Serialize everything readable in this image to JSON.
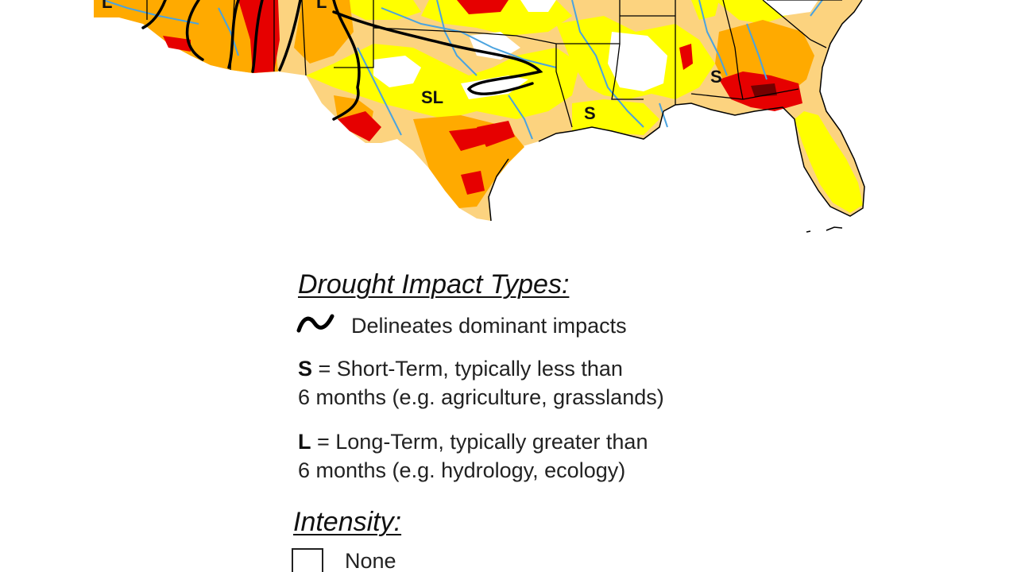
{
  "map": {
    "region_labels": [
      "L",
      "L",
      "SL",
      "S",
      "S"
    ],
    "colors": {
      "none": "#ffffff",
      "abnormally_dry": "#ffff00",
      "moderate": "#fcd37f",
      "severe": "#ffaa00",
      "extreme": "#e60000",
      "exceptional": "#730000",
      "rivers": "#4aa3df",
      "boundaries": "#000000"
    }
  },
  "legend": {
    "impact_heading": "Drought Impact Types:",
    "delineates_label": "Delineates dominant impacts",
    "short_key": "S",
    "short_line1": " = Short-Term, typically less than",
    "short_line2": "6 months (e.g. agriculture, grasslands)",
    "long_key": "L",
    "long_line1": " = Long-Term, typically greater than",
    "long_line2": "6 months (e.g. hydrology, ecology)",
    "intensity_heading": "Intensity:",
    "none_label": "None",
    "swiggle_icon": "tilde-line-icon"
  }
}
